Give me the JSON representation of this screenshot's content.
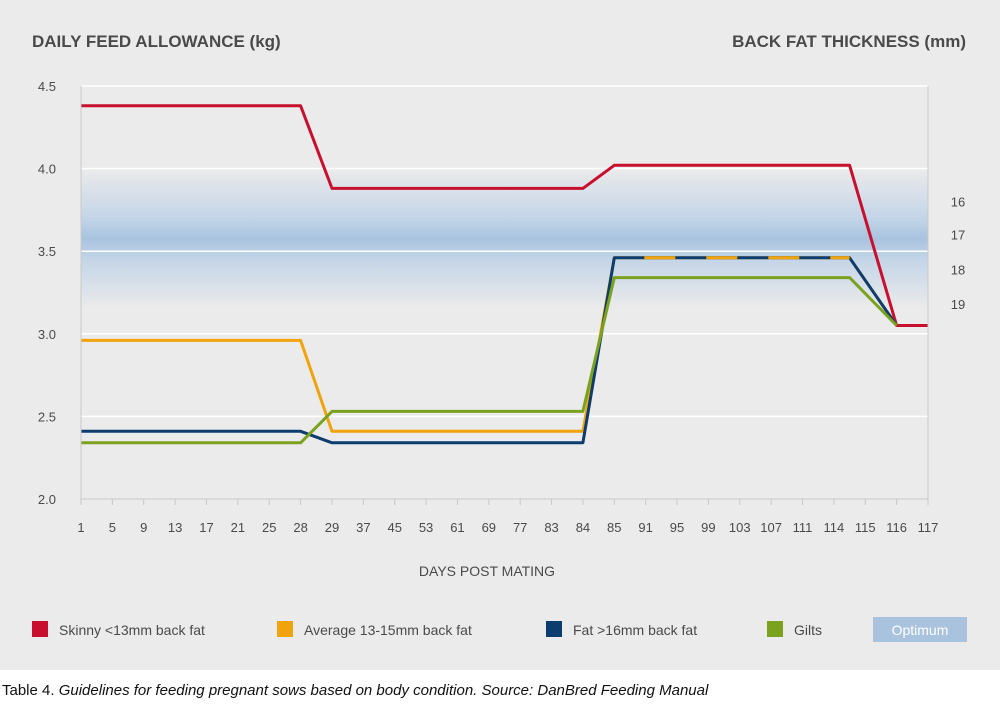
{
  "caption": {
    "label": "Table 4.",
    "text": "Guidelines for feeding pregnant sows based on body condition. Source: DanBred Feeding Manual"
  },
  "chart_data": {
    "type": "line",
    "title_left": "DAILY FEED ALLOWANCE (kg)",
    "title_right": "BACK FAT THICKNESS (mm)",
    "xlabel": "DAYS POST MATING",
    "categories": [
      "1",
      "5",
      "9",
      "13",
      "17",
      "21",
      "25",
      "28",
      "29",
      "37",
      "45",
      "53",
      "61",
      "69",
      "77",
      "83",
      "84",
      "85",
      "91",
      "95",
      "99",
      "103",
      "107",
      "111",
      "114",
      "115",
      "116",
      "117"
    ],
    "y_ticks": [
      "2.0",
      "2.5",
      "3.0",
      "3.5",
      "4.0",
      "4.5"
    ],
    "ylim": [
      2.0,
      4.5
    ],
    "right_ticks": [
      {
        "label": "16",
        "at": 3.8
      },
      {
        "label": "17",
        "at": 3.6
      },
      {
        "label": "18",
        "at": 3.39
      },
      {
        "label": "19",
        "at": 3.18
      }
    ],
    "optimum_band": [
      3.15,
      4.0
    ],
    "grid": true,
    "legend_position": "bottom",
    "series": [
      {
        "name": "Skinny <13mm back fat",
        "color": "#c8102e",
        "dashed": false,
        "points": [
          [
            0,
            4.38
          ],
          [
            7,
            4.38
          ],
          [
            8,
            3.88
          ],
          [
            15,
            3.88
          ],
          [
            16,
            3.88
          ],
          [
            17,
            4.02
          ],
          [
            24.5,
            4.02
          ],
          [
            26,
            3.05
          ],
          [
            27,
            3.05
          ]
        ]
      },
      {
        "name": "Average 13-15mm back fat",
        "color": "#f0a30a",
        "dashed": false,
        "points": [
          [
            0,
            2.96
          ],
          [
            7,
            2.96
          ],
          [
            8,
            2.41
          ],
          [
            16,
            2.41
          ],
          [
            17,
            3.46
          ],
          [
            24.5,
            3.46
          ],
          [
            26,
            3.05
          ]
        ]
      },
      {
        "name": "Fat >16mm back fat",
        "color": "#0d3c6e",
        "dashed": true,
        "points": [
          [
            0,
            2.41
          ],
          [
            7,
            2.41
          ],
          [
            8,
            2.34
          ],
          [
            16,
            2.34
          ],
          [
            17,
            3.46
          ],
          [
            24.5,
            3.46
          ],
          [
            26,
            3.05
          ]
        ]
      },
      {
        "name": "Gilts",
        "color": "#7aa21e",
        "dashed": false,
        "points": [
          [
            0,
            2.34
          ],
          [
            7,
            2.34
          ],
          [
            8,
            2.53
          ],
          [
            16,
            2.53
          ],
          [
            17,
            3.34
          ],
          [
            24.5,
            3.34
          ],
          [
            26,
            3.05
          ]
        ]
      }
    ],
    "legend_optimum": {
      "label": "Optimum",
      "color": "#a9c3df"
    }
  }
}
